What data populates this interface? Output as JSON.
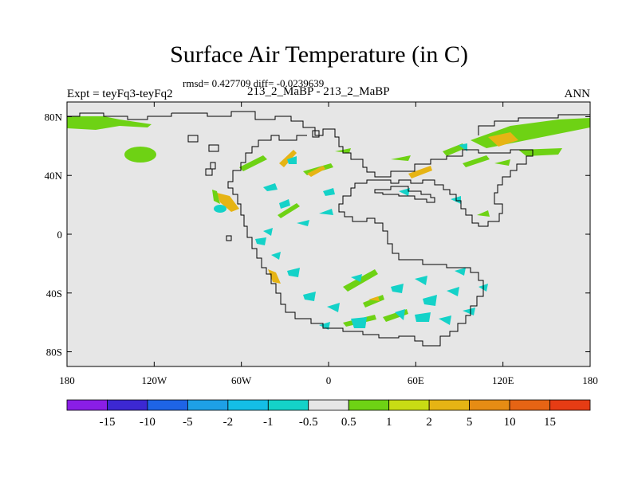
{
  "title": "Surface Air Temperature (in C)",
  "stats_line": "rmsd= 0.427709 diff= -0.0239639",
  "experiment_line": "Expt = teyFq3-teyFq2",
  "cases_line": "213_2_MaBP - 213_2_MaBP",
  "period": "ANN",
  "map": {
    "lon_range": [
      -180,
      180
    ],
    "lat_range": [
      -90,
      90
    ],
    "background_color": "#e6e6e6",
    "x_ticks": [
      {
        "value": -180,
        "label": "180"
      },
      {
        "value": -120,
        "label": "120W"
      },
      {
        "value": -60,
        "label": "60W"
      },
      {
        "value": 0,
        "label": "0"
      },
      {
        "value": 60,
        "label": "60E"
      },
      {
        "value": 120,
        "label": "120E"
      },
      {
        "value": 180,
        "label": "180"
      }
    ],
    "y_ticks": [
      {
        "value": 80,
        "label": "80N"
      },
      {
        "value": 40,
        "label": "40N"
      },
      {
        "value": 0,
        "label": "0"
      },
      {
        "value": -40,
        "label": "40S"
      },
      {
        "value": -80,
        "label": "80S"
      }
    ]
  },
  "colorbar": {
    "colors": [
      "#8a1ee6",
      "#3c28d2",
      "#1e64e6",
      "#1ea0e6",
      "#14bee6",
      "#14d2c8",
      "#e6e6e6",
      "#6ed214",
      "#c8dc14",
      "#e6b414",
      "#e68c14",
      "#e66414",
      "#e63c14"
    ],
    "labels": [
      "-15",
      "-10",
      "-5",
      "-2",
      "-1",
      "-0.5",
      "0.5",
      "1",
      "2",
      "5",
      "10",
      "15"
    ]
  }
}
